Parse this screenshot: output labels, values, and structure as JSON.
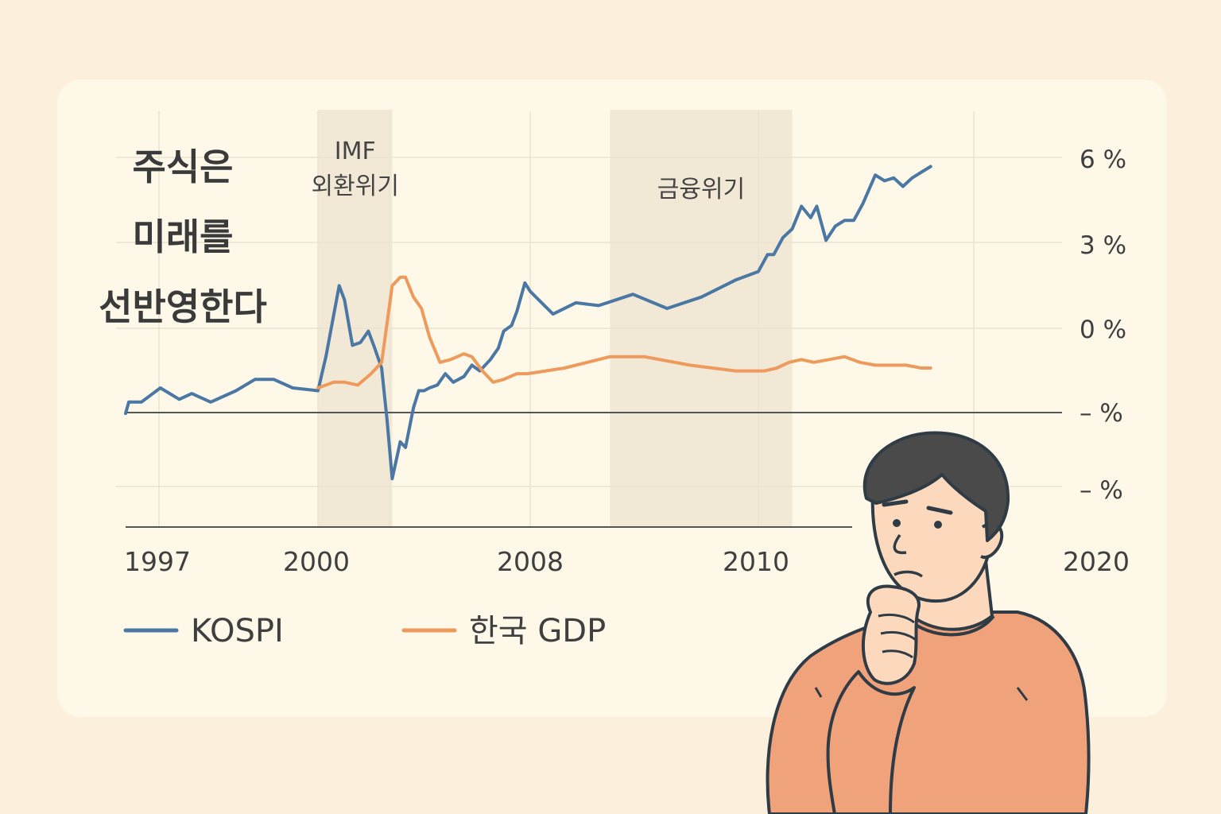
{
  "chart_data": {
    "type": "line",
    "title_lines": [
      "주식은",
      "미래를",
      "선반영한다"
    ],
    "shaded_periods": [
      {
        "label_lines": [
          "IMF",
          "외환위기"
        ],
        "start": 2000,
        "end": 2002.8
      },
      {
        "label_lines": [
          "금융위기"
        ],
        "start": 2008.7,
        "end": 2011.1
      }
    ],
    "x_ticks": [
      "1997",
      "2000",
      "2008",
      "2010",
      "2020"
    ],
    "y_ticks": [
      "6 %",
      "3 %",
      "0 %",
      "– %",
      "– %"
    ],
    "legend": [
      {
        "label": "KOSPI",
        "color": "#4a77a3"
      },
      {
        "label": "한국 GDP",
        "color": "#ef9a5d"
      }
    ],
    "series": [
      {
        "name": "KOSPI",
        "color": "#4a77a3",
        "points": [
          [
            1996.8,
            -3
          ],
          [
            1997.0,
            -2.6
          ],
          [
            1997.2,
            -2.6
          ],
          [
            1997.5,
            -2.1
          ],
          [
            1997.8,
            -2.5
          ],
          [
            1998.0,
            -2.3
          ],
          [
            1998.3,
            -2.6
          ],
          [
            1998.7,
            -2.2
          ],
          [
            1999.0,
            -1.8
          ],
          [
            1999.3,
            -1.8
          ],
          [
            1999.6,
            -2.1
          ],
          [
            2000.0,
            -2.2
          ],
          [
            2000.3,
            -1.0
          ],
          [
            2000.6,
            0.5
          ],
          [
            2000.8,
            1.5
          ],
          [
            2001.0,
            1.0
          ],
          [
            2001.3,
            -0.6
          ],
          [
            2001.6,
            -0.5
          ],
          [
            2001.9,
            -0.1
          ],
          [
            2002.1,
            -0.6
          ],
          [
            2002.4,
            -1.4
          ],
          [
            2002.6,
            -3.2
          ],
          [
            2002.8,
            -5.3
          ],
          [
            2003.1,
            -4.0
          ],
          [
            2003.3,
            -4.2
          ],
          [
            2003.6,
            -2.8
          ],
          [
            2003.8,
            -2.2
          ],
          [
            2004.0,
            -2.2
          ],
          [
            2004.2,
            -2.1
          ],
          [
            2004.5,
            -2.0
          ],
          [
            2004.8,
            -1.6
          ],
          [
            2005.1,
            -1.9
          ],
          [
            2005.5,
            -1.7
          ],
          [
            2005.8,
            -1.3
          ],
          [
            2006.1,
            -1.5
          ],
          [
            2006.5,
            -1.1
          ],
          [
            2006.8,
            -0.7
          ],
          [
            2007.0,
            -0.1
          ],
          [
            2007.3,
            0.1
          ],
          [
            2007.5,
            0.6
          ],
          [
            2007.8,
            1.6
          ],
          [
            2008.0,
            1.3
          ],
          [
            2008.2,
            0.5
          ],
          [
            2008.4,
            0.9
          ],
          [
            2008.6,
            0.8
          ],
          [
            2008.9,
            1.2
          ],
          [
            2009.2,
            0.7
          ],
          [
            2009.5,
            1.1
          ],
          [
            2009.8,
            1.7
          ],
          [
            2010.0,
            2.0
          ],
          [
            2010.3,
            2.6
          ],
          [
            2010.5,
            2.6
          ],
          [
            2010.8,
            3.2
          ],
          [
            2011.1,
            3.5
          ],
          [
            2011.4,
            4.3
          ],
          [
            2011.7,
            3.9
          ],
          [
            2011.9,
            4.3
          ],
          [
            2012.2,
            3.1
          ],
          [
            2012.5,
            3.6
          ],
          [
            2012.8,
            3.8
          ],
          [
            2013.1,
            3.8
          ],
          [
            2013.4,
            4.4
          ],
          [
            2013.8,
            5.4
          ],
          [
            2014.1,
            5.2
          ],
          [
            2014.4,
            5.3
          ],
          [
            2014.7,
            5.0
          ],
          [
            2015.0,
            5.3
          ],
          [
            2015.3,
            5.5
          ],
          [
            2015.6,
            5.7
          ]
        ]
      },
      {
        "name": "한국 GDP",
        "color": "#ef9a5d",
        "points": [
          [
            2000.0,
            -2.1
          ],
          [
            2000.6,
            -1.9
          ],
          [
            2001.0,
            -1.9
          ],
          [
            2001.5,
            -2.0
          ],
          [
            2002.0,
            -1.6
          ],
          [
            2002.4,
            -1.2
          ],
          [
            2002.8,
            1.5
          ],
          [
            2003.1,
            1.8
          ],
          [
            2003.3,
            1.8
          ],
          [
            2003.6,
            1.1
          ],
          [
            2003.9,
            0.7
          ],
          [
            2004.2,
            -0.3
          ],
          [
            2004.6,
            -1.2
          ],
          [
            2005.0,
            -1.1
          ],
          [
            2005.5,
            -0.9
          ],
          [
            2005.8,
            -1.0
          ],
          [
            2006.2,
            -1.5
          ],
          [
            2006.6,
            -1.9
          ],
          [
            2007.0,
            -1.8
          ],
          [
            2007.5,
            -1.6
          ],
          [
            2007.9,
            -1.6
          ],
          [
            2008.3,
            -1.4
          ],
          [
            2008.7,
            -1.0
          ],
          [
            2009.0,
            -1.0
          ],
          [
            2009.4,
            -1.3
          ],
          [
            2009.8,
            -1.5
          ],
          [
            2010.2,
            -1.5
          ],
          [
            2010.6,
            -1.4
          ],
          [
            2011.0,
            -1.2
          ],
          [
            2011.4,
            -1.1
          ],
          [
            2011.8,
            -1.2
          ],
          [
            2012.3,
            -1.1
          ],
          [
            2012.8,
            -1.0
          ],
          [
            2013.3,
            -1.2
          ],
          [
            2013.8,
            -1.3
          ],
          [
            2014.3,
            -1.3
          ],
          [
            2014.8,
            -1.3
          ],
          [
            2015.3,
            -1.4
          ],
          [
            2015.6,
            -1.4
          ]
        ]
      }
    ]
  }
}
